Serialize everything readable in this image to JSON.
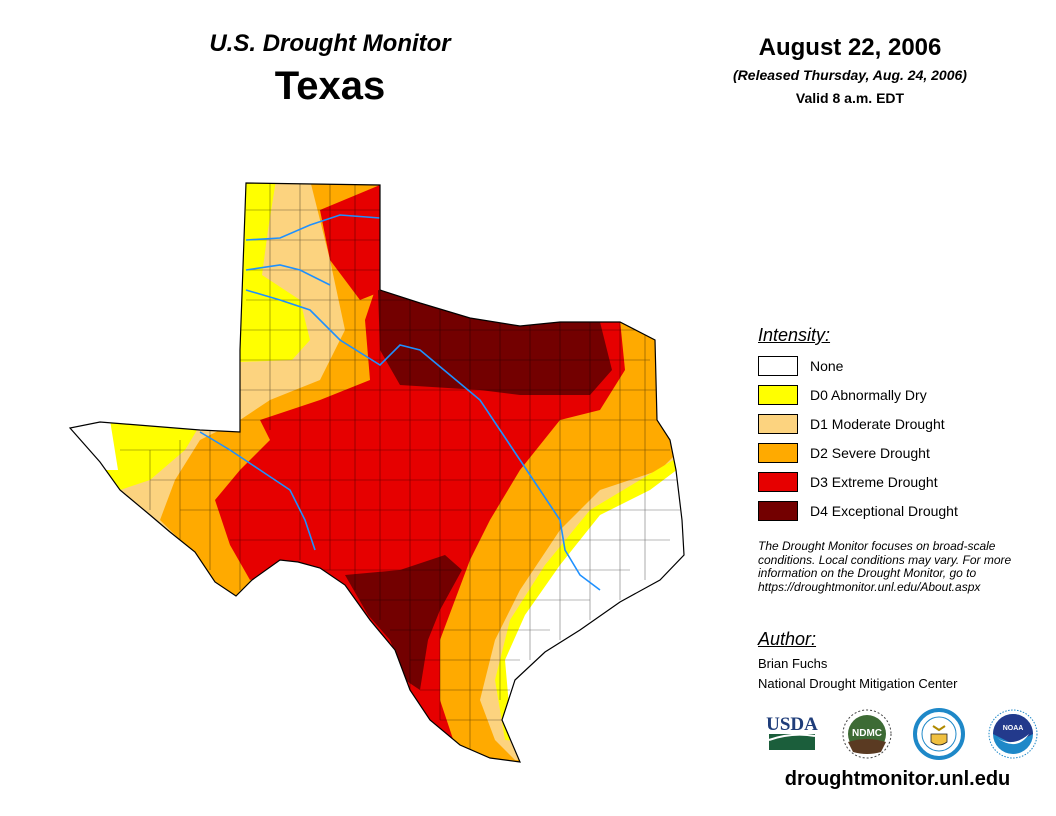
{
  "header": {
    "title": "U.S. Drought Monitor",
    "state": "Texas",
    "date": "August 22, 2006",
    "released": "(Released Thursday, Aug. 24, 2006)",
    "valid": "Valid 8 a.m. EDT"
  },
  "legend": {
    "title": "Intensity:",
    "items": [
      {
        "label": "None",
        "color": "#ffffff"
      },
      {
        "label": "D0 Abnormally Dry",
        "color": "#ffff00"
      },
      {
        "label": "D1 Moderate Drought",
        "color": "#fcd37f"
      },
      {
        "label": "D2 Severe Drought",
        "color": "#ffaa00"
      },
      {
        "label": "D3 Extreme Drought",
        "color": "#e60000"
      },
      {
        "label": "D4 Exceptional Drought",
        "color": "#730000"
      }
    ]
  },
  "note": "The Drought Monitor focuses on broad-scale conditions. Local conditions may vary. For more information on the Drought Monitor, go to https://droughtmonitor.unl.edu/About.aspx",
  "author": {
    "heading": "Author:",
    "name": "Brian Fuchs",
    "org": "National Drought Mitigation Center"
  },
  "logos": [
    "USDA",
    "NDMC",
    "DOC",
    "NOAA"
  ],
  "url": "droughtmonitor.unl.edu"
}
